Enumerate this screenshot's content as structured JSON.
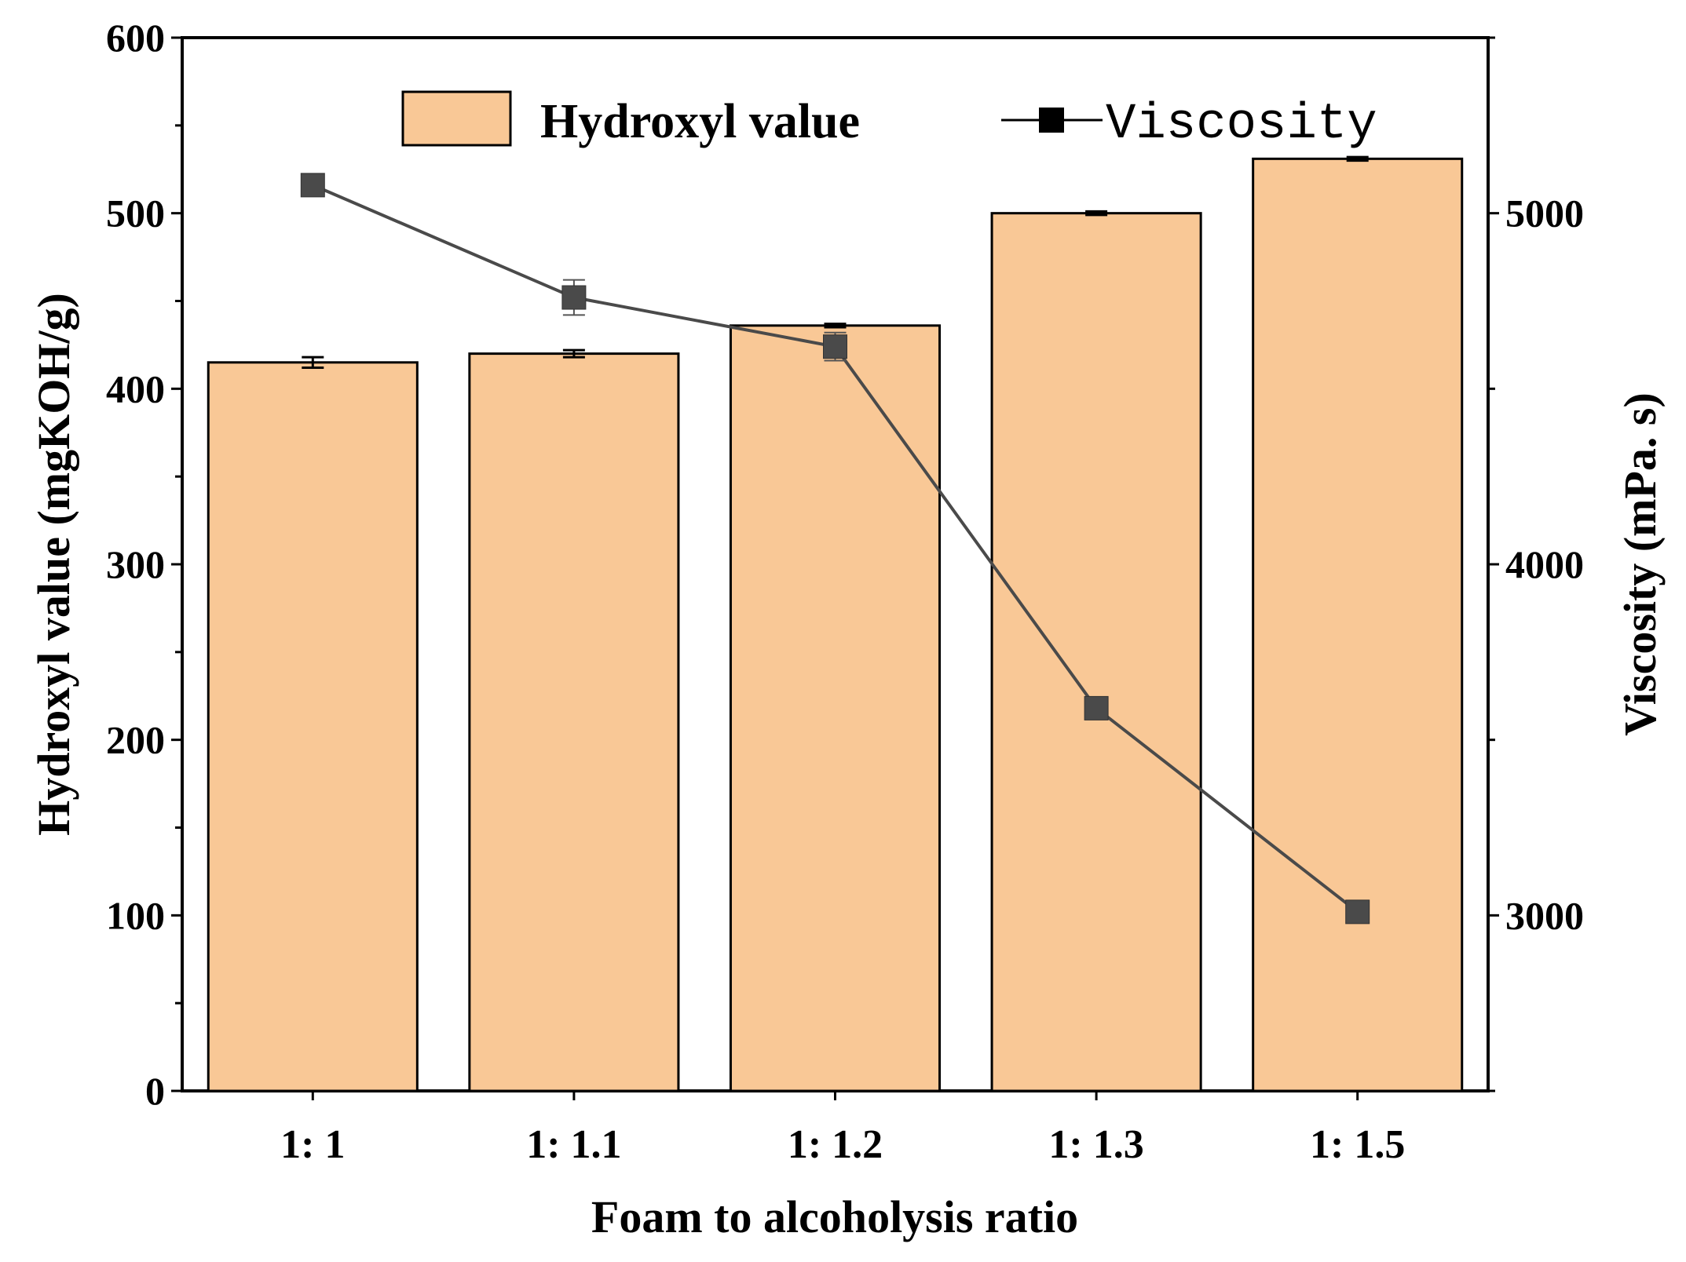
{
  "chart_data": {
    "type": "bar+line",
    "categories": [
      "1: 1",
      "1: 1.1",
      "1: 1.2",
      "1: 1.3",
      "1: 1.5"
    ],
    "series": [
      {
        "name": "Hydroxyl value",
        "type": "bar",
        "axis": "left",
        "values": [
          415,
          420,
          436,
          500,
          531
        ],
        "errors": [
          3,
          2,
          1,
          1,
          1
        ],
        "color": "#F9C896"
      },
      {
        "name": "Viscosity",
        "type": "line",
        "axis": "right",
        "values": [
          5080,
          4760,
          4620,
          3590,
          3010
        ],
        "errors": [
          0,
          50,
          40,
          0,
          0
        ],
        "color": "#4A4A4A"
      }
    ],
    "xlabel": "Foam to alcoholysis ratio",
    "ylabel_left": "Hydroxyl value (mgKOH/g)",
    "ylabel_right": "Viscosity (mPa. s)",
    "ylim_left": [
      0,
      600
    ],
    "yticks_left": [
      0,
      100,
      200,
      300,
      400,
      500,
      600
    ],
    "ylim_right": [
      2500,
      5500
    ],
    "yticks_right": [
      3000,
      4000,
      5000
    ],
    "legend": {
      "placement": "top-center",
      "bar_label": "Hydroxyl value",
      "line_label": "Viscosity"
    }
  }
}
